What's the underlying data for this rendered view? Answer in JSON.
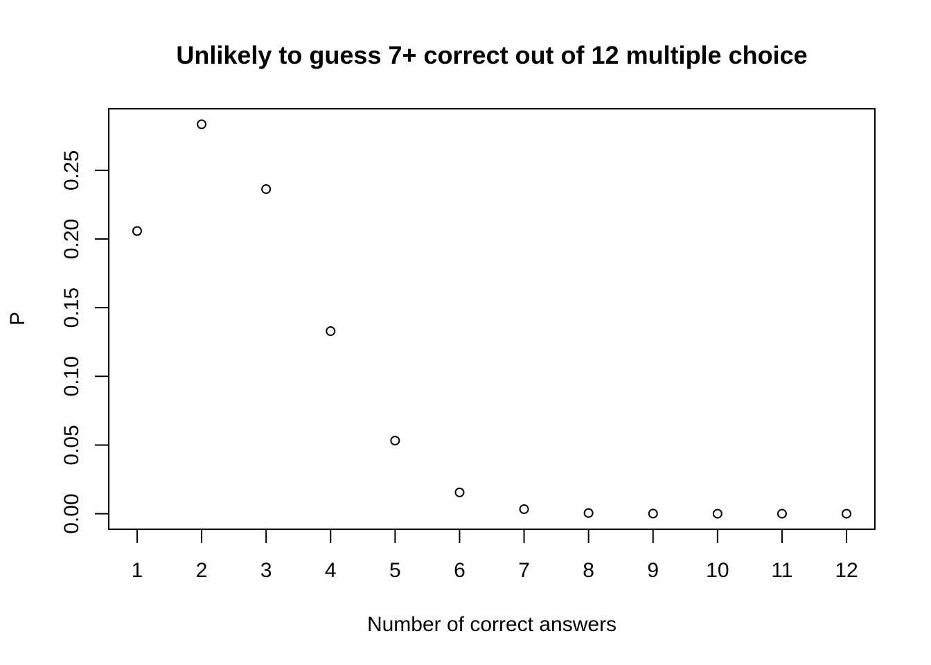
{
  "chart_data": {
    "type": "scatter",
    "title": "Unlikely to guess 7+ correct out of 12 multiple choice",
    "xlabel": "Number of correct answers",
    "ylabel": "P",
    "x": [
      1,
      2,
      3,
      4,
      5,
      6,
      7,
      8,
      9,
      10,
      11,
      12
    ],
    "y": [
      0.2058,
      0.2835,
      0.2363,
      0.1329,
      0.0532,
      0.0155,
      0.0033,
      0.0005,
      0.0001,
      0.0,
      0.0,
      0.0
    ],
    "xlim": [
      0.56,
      12.44
    ],
    "ylim": [
      -0.0113,
      0.2948
    ],
    "x_ticks": [
      1,
      2,
      3,
      4,
      5,
      6,
      7,
      8,
      9,
      10,
      11,
      12
    ],
    "y_ticks": [
      0.0,
      0.05,
      0.1,
      0.15,
      0.2,
      0.25
    ],
    "y_tick_labels": [
      "0.00",
      "0.05",
      "0.10",
      "0.15",
      "0.20",
      "0.25"
    ],
    "grid": false,
    "marker": "open-circle"
  }
}
